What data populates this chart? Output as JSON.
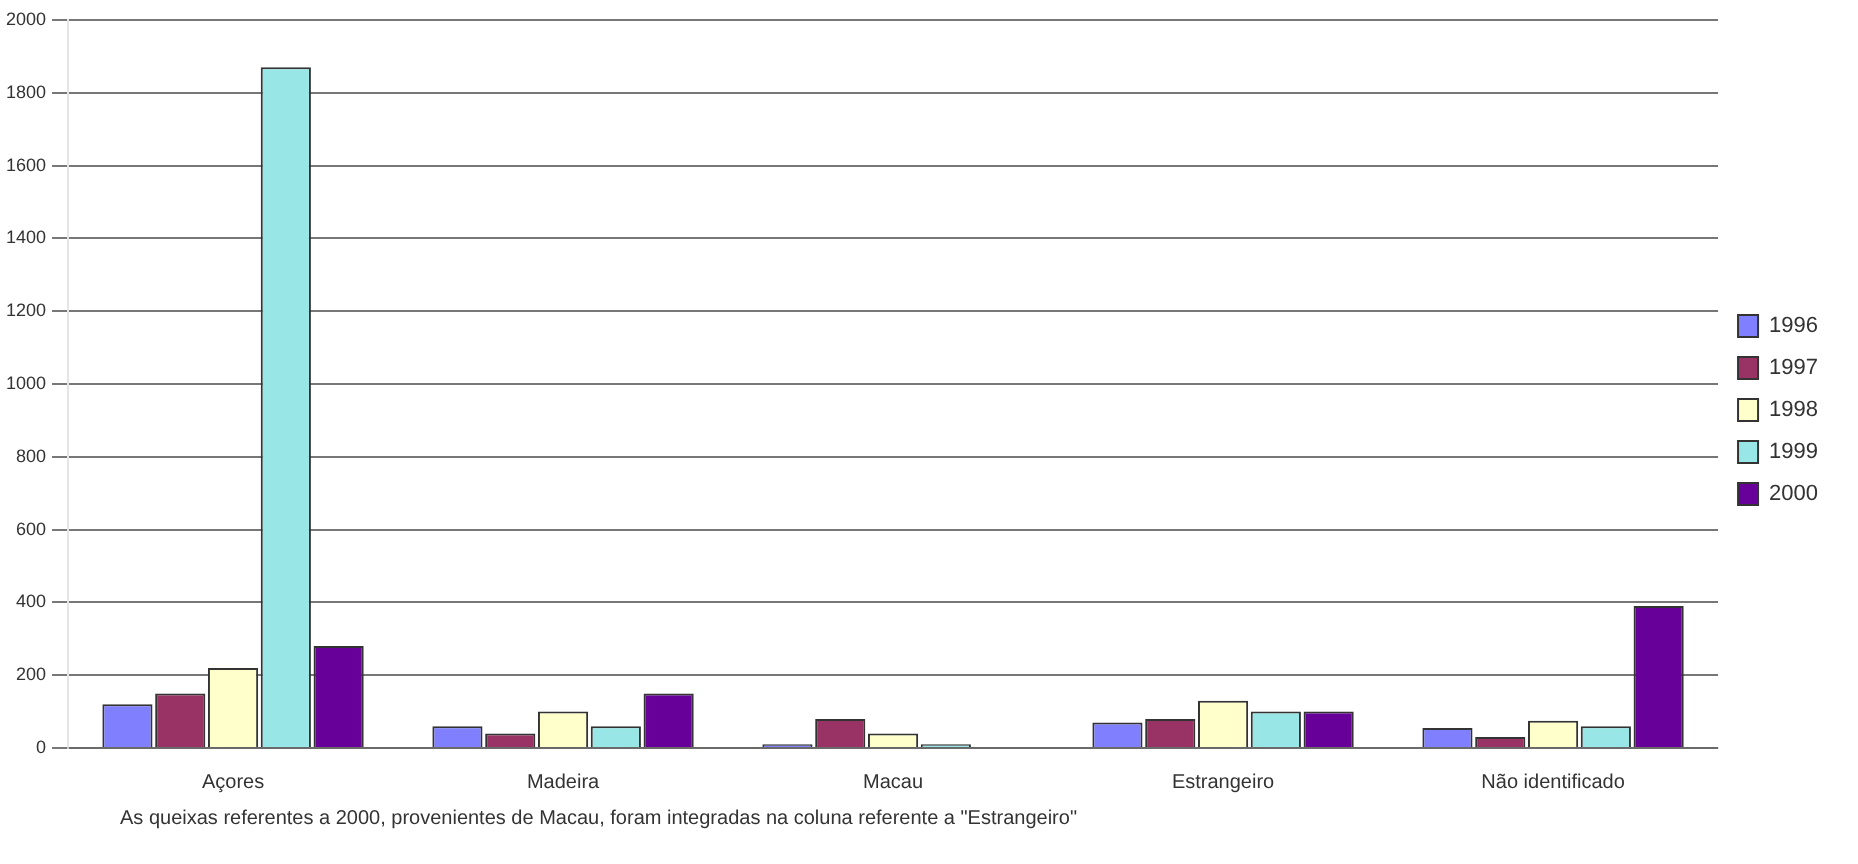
{
  "chart_data": {
    "type": "bar",
    "categories": [
      "Açores",
      "Madeira",
      "Macau",
      "Estrangeiro",
      "Não identificado"
    ],
    "series": [
      {
        "name": "1996",
        "color": "#8080ff",
        "values": [
          120,
          60,
          10,
          70,
          55
        ]
      },
      {
        "name": "1997",
        "color": "#993366",
        "values": [
          150,
          40,
          80,
          80,
          30
        ]
      },
      {
        "name": "1998",
        "color": "#ffffcc",
        "values": [
          220,
          100,
          40,
          130,
          75
        ]
      },
      {
        "name": "1999",
        "color": "#99e6e6",
        "values": [
          1870,
          60,
          10,
          100,
          60
        ]
      },
      {
        "name": "2000",
        "color": "#660099",
        "values": [
          280,
          150,
          0,
          100,
          390
        ]
      }
    ],
    "ylim": [
      0,
      2000
    ],
    "yticks": [
      0,
      200,
      400,
      600,
      800,
      1000,
      1200,
      1400,
      1600,
      1800,
      2000
    ],
    "grid": "y",
    "legend": "right",
    "annotations": [
      "As queixas referentes a 2000, provenientes de Macau, foram integradas na coluna referente a \"Estrangeiro\""
    ]
  }
}
